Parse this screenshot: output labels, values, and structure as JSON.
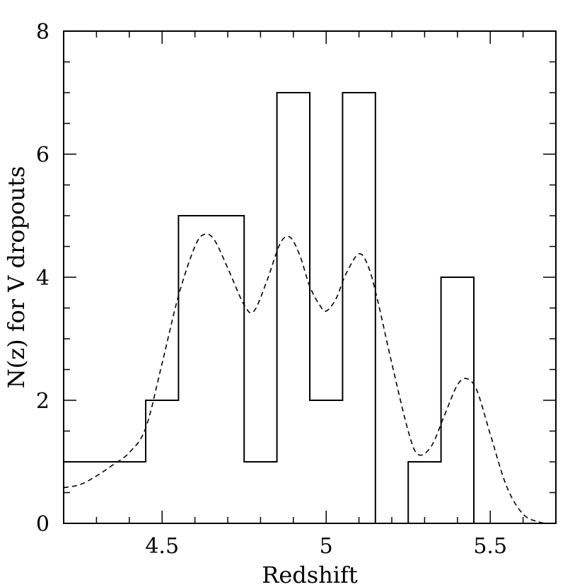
{
  "chart_data": {
    "type": "line",
    "xlabel": "Redshift",
    "ylabel": "N(z) for V dropouts",
    "xlim": [
      4.2,
      5.7
    ],
    "ylim": [
      0,
      8
    ],
    "x_major_ticks": [
      4.5,
      5,
      5.5
    ],
    "x_tick_labels": [
      "4.5",
      "5",
      "5.5"
    ],
    "x_minor_step": 0.1,
    "y_major_ticks": [
      0,
      2,
      4,
      6,
      8
    ],
    "y_tick_labels": [
      "0",
      "2",
      "4",
      "6",
      "8"
    ],
    "y_minor_step": 0.5,
    "grid": false,
    "series": [
      {
        "style": "histogram",
        "line": "solid",
        "bin_edges": [
          4.2,
          4.45,
          4.55,
          4.75,
          4.85,
          4.95,
          5.05,
          5.15,
          5.25,
          5.35,
          5.45
        ],
        "counts": [
          1,
          2,
          5,
          1,
          7,
          2,
          7,
          0,
          1,
          4
        ]
      },
      {
        "style": "curve",
        "line": "dashed",
        "x": [
          4.2,
          4.25,
          4.3,
          4.35,
          4.4,
          4.45,
          4.5,
          4.55,
          4.6,
          4.63,
          4.66,
          4.7,
          4.75,
          4.78,
          4.82,
          4.86,
          4.89,
          4.92,
          4.95,
          4.98,
          5.0,
          5.03,
          5.06,
          5.1,
          5.13,
          5.16,
          5.2,
          5.25,
          5.28,
          5.32,
          5.36,
          5.4,
          5.43,
          5.46,
          5.5,
          5.55,
          5.6,
          5.65,
          5.68
        ],
        "y": [
          0.58,
          0.63,
          0.77,
          0.95,
          1.15,
          1.55,
          2.6,
          3.7,
          4.5,
          4.7,
          4.6,
          4.15,
          3.55,
          3.45,
          3.95,
          4.55,
          4.65,
          4.35,
          3.85,
          3.55,
          3.45,
          3.65,
          4.05,
          4.38,
          4.15,
          3.55,
          2.6,
          1.5,
          1.12,
          1.25,
          1.75,
          2.25,
          2.35,
          2.15,
          1.45,
          0.6,
          0.15,
          0.02,
          0.0
        ]
      }
    ]
  }
}
